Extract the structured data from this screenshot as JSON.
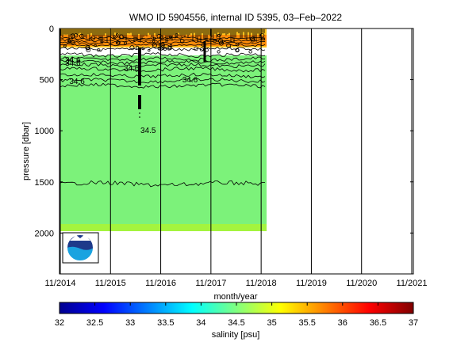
{
  "chart_data": {
    "type": "heatmap",
    "title": "WMO ID 5904556, internal ID 5395, 03–Feb–2022",
    "xlabel": "month/year",
    "ylabel": "pressure [dbar]",
    "colorbar_label": "salinity [psu]",
    "x_ticks": [
      "11/2014",
      "11/2015",
      "11/2016",
      "11/2017",
      "11/2018",
      "11/2019",
      "11/2020",
      "11/2021"
    ],
    "y_ticks": [
      "0",
      "500",
      "1000",
      "1500",
      "2000"
    ],
    "y_range": [
      0,
      2400
    ],
    "y_inverted": true,
    "data_time_range": [
      "11/2014",
      "03/2018"
    ],
    "colorbar_ticks": [
      "32",
      "32.5",
      "33",
      "33.5",
      "34",
      "34.5",
      "35",
      "35.5",
      "36",
      "36.5",
      "37"
    ],
    "colorbar_range": [
      32,
      37
    ],
    "contour_labels": [
      {
        "text": "34.6",
        "x": "02/2015",
        "y": 310
      },
      {
        "text": "34.6",
        "x": "02/2015",
        "y": 340
      },
      {
        "text": "34.6",
        "x": "03/2015",
        "y": 520
      },
      {
        "text": "34.6",
        "x": "04/2016",
        "y": 390
      },
      {
        "text": "34.6",
        "x": "06/2017",
        "y": 505
      },
      {
        "text": "34.5",
        "x": "08/2016",
        "y": 1000
      }
    ],
    "depth_layers": [
      {
        "range_dbar": [
          0,
          180
        ],
        "description_color": "#ff9c1a"
      },
      {
        "range_dbar": [
          180,
          1980
        ],
        "description_color": "#7cf27a"
      },
      {
        "range_dbar": [
          1980,
          2000
        ],
        "description_color": "#a4f43e"
      }
    ],
    "grid": true,
    "colormap": [
      "#00008f",
      "#0000ff",
      "#0080ff",
      "#00ffff",
      "#80ff80",
      "#ffff00",
      "#ff8000",
      "#ff0000",
      "#800000"
    ]
  }
}
